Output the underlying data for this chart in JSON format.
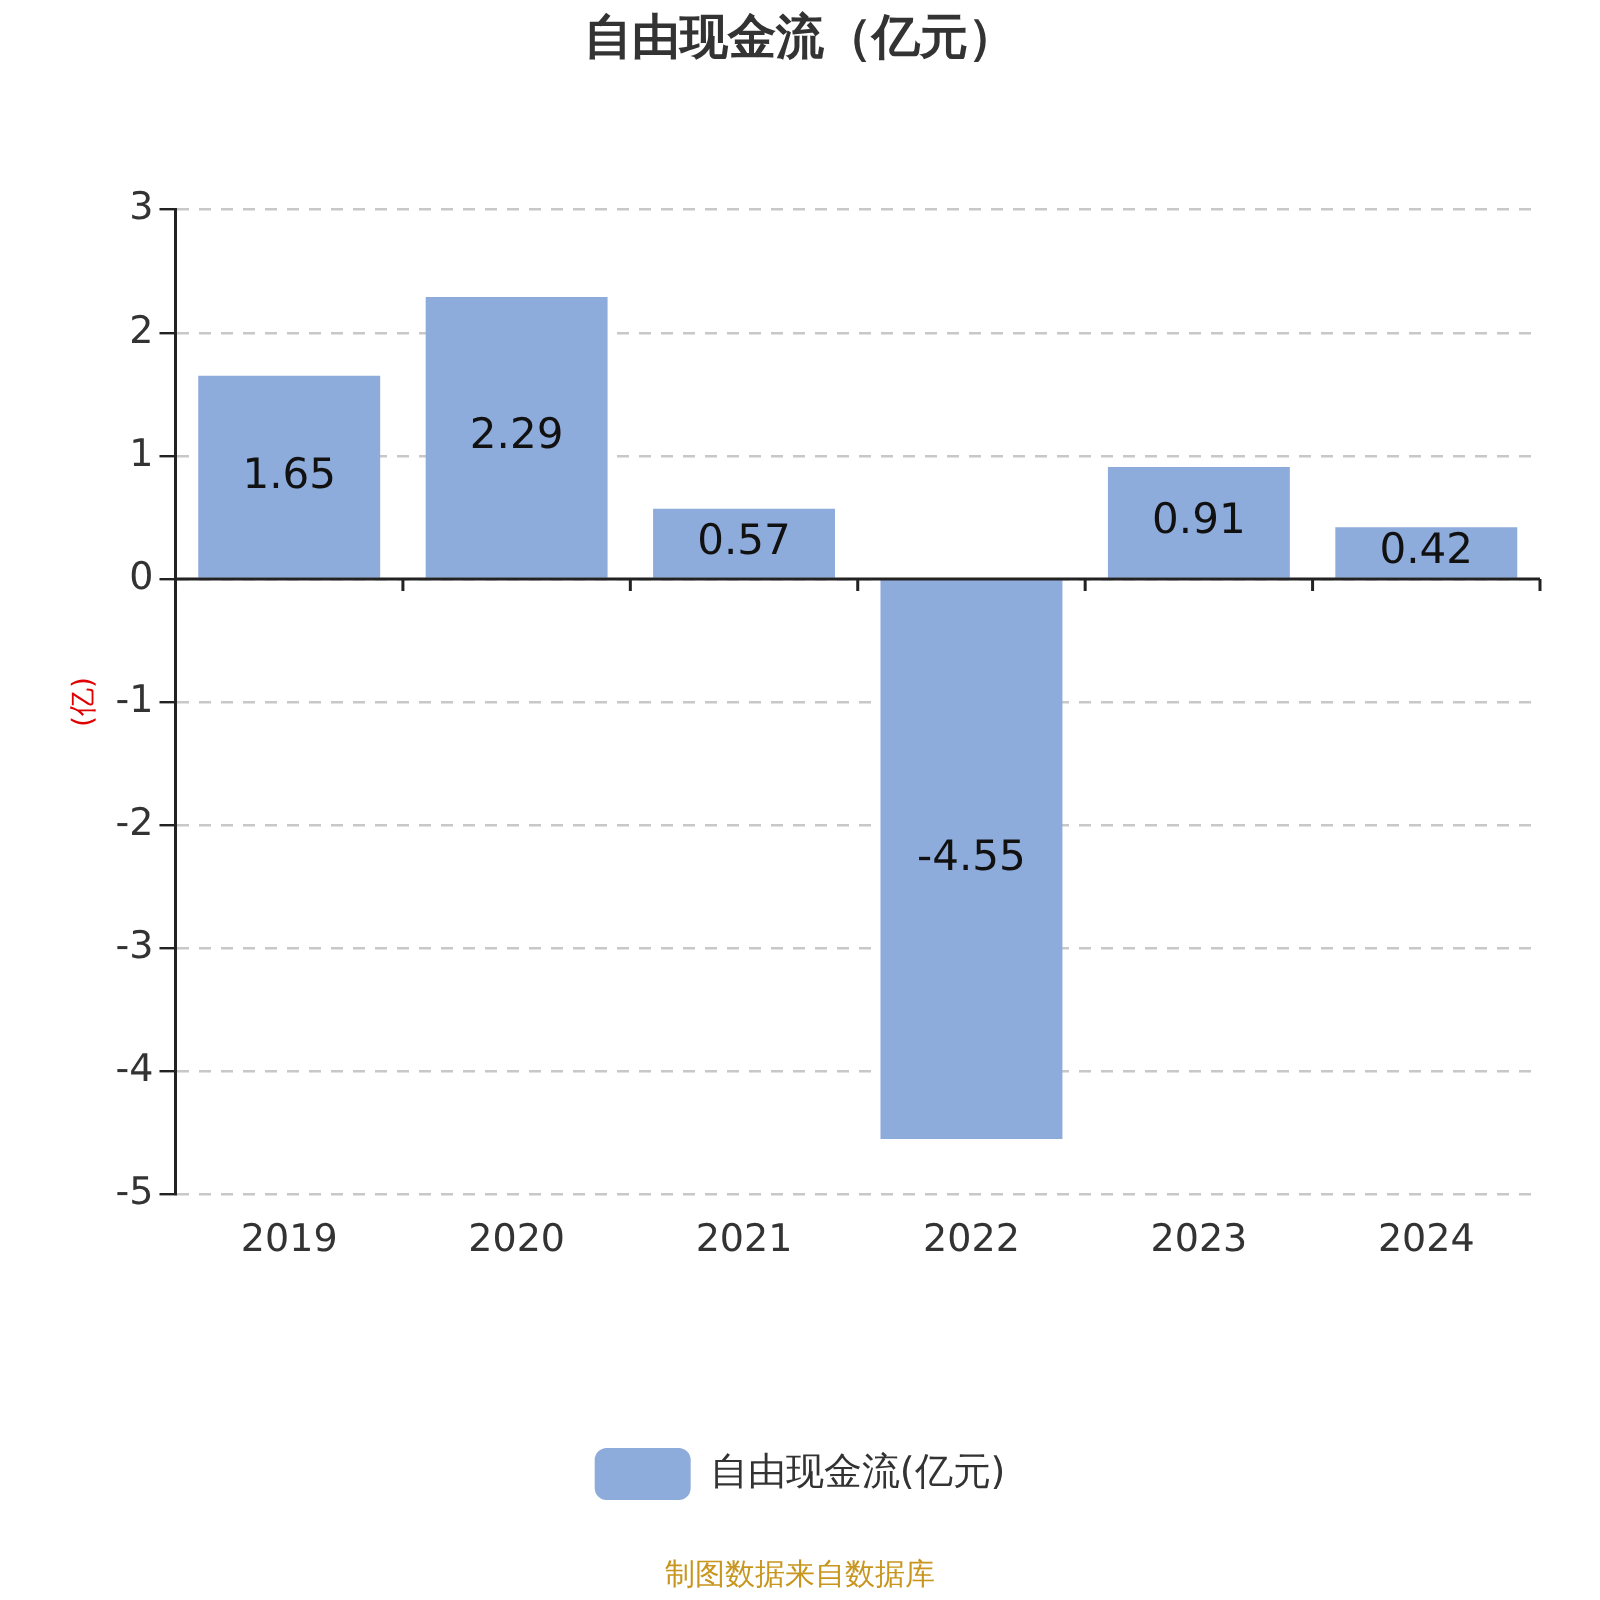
{
  "chart_data": {
    "type": "bar",
    "title": "自由现金流（亿元）",
    "ylabel": "(亿)",
    "categories": [
      "2019",
      "2020",
      "2021",
      "2022",
      "2023",
      "2024"
    ],
    "series": [
      {
        "name": "自由现金流(亿元)",
        "color": "#8eacdb",
        "values": [
          1.65,
          2.29,
          0.57,
          -4.55,
          0.91,
          0.42
        ]
      }
    ],
    "ylim": [
      -5,
      3
    ],
    "yticks": [
      -5,
      -4,
      -3,
      -2,
      -1,
      0,
      1,
      2,
      3
    ],
    "grid": "y",
    "legend": "bottom",
    "data_labels": true,
    "annotations": [
      "制图数据来自数据库"
    ]
  }
}
